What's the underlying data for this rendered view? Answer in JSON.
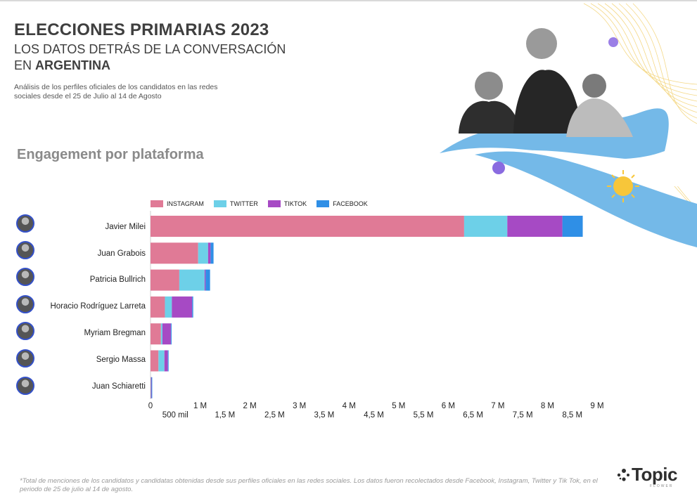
{
  "header": {
    "title": "ELECCIONES PRIMARIAS 2023",
    "subtitle_line1": "LOS DATOS DETRÁS DE LA CONVERSACIÓN",
    "subtitle_line2_prefix": "EN ",
    "subtitle_line2_bold": "ARGENTINA",
    "description": "Análisis de los perfiles oficiales de los candidatos en las redes sociales desde el 25 de Julio al 14 de Agosto"
  },
  "section_title": "Engagement por plataforma",
  "chart_data": {
    "type": "bar",
    "orientation": "horizontal",
    "stacked": true,
    "categories": [
      "Javier Milei",
      "Juan Grabois",
      "Patricia Bullrich",
      "Horacio Rodríguez Larreta",
      "Myriam Bregman",
      "Sergio Massa",
      "Juan Schiaretti"
    ],
    "series": [
      {
        "name": "INSTAGRAM",
        "color": "#e07a96",
        "values": [
          6320000,
          960000,
          580000,
          290000,
          210000,
          160000,
          5000
        ]
      },
      {
        "name": "TWITTER",
        "color": "#6dd0e8",
        "values": [
          870000,
          200000,
          510000,
          140000,
          30000,
          120000,
          5000
        ]
      },
      {
        "name": "TIKTOK",
        "color": "#a64ac4",
        "values": [
          1110000,
          50000,
          20000,
          410000,
          170000,
          70000,
          10000
        ]
      },
      {
        "name": "FACEBOOK",
        "color": "#2f8fe6",
        "values": [
          410000,
          60000,
          90000,
          20000,
          10000,
          10000,
          5000
        ]
      }
    ],
    "xlim": [
      0,
      9000000
    ],
    "ticks_major": {
      "values": [
        0,
        1000000,
        2000000,
        3000000,
        4000000,
        5000000,
        6000000,
        7000000,
        8000000,
        9000000
      ],
      "labels": [
        "0",
        "1 M",
        "2 M",
        "3 M",
        "4 M",
        "5 M",
        "6 M",
        "7 M",
        "8 M",
        "9 M"
      ]
    },
    "ticks_minor": {
      "values": [
        500000,
        1500000,
        2500000,
        3500000,
        4500000,
        5500000,
        6500000,
        7500000,
        8500000
      ],
      "labels": [
        "500 mil",
        "1,5 M",
        "2,5 M",
        "3,5 M",
        "4,5 M",
        "5,5 M",
        "6,5 M",
        "7,5 M",
        "8,5 M"
      ]
    },
    "legend_position": "top-left",
    "grid": false
  },
  "footnote": "*Total de menciones de los candidatos y candidatas obtenidas desde sus perfiles oficiales en las redes sociales. Los datos fueron recolectados desde Facebook, Instagram, Twitter y Tik Tok, en el periodo de 25 de julio al 14 de agosto.",
  "logo": {
    "name": "Topic",
    "sub": "FLOWER"
  }
}
